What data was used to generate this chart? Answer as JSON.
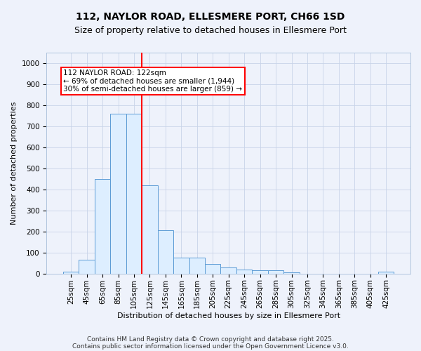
{
  "title_line1": "112, NAYLOR ROAD, ELLESMERE PORT, CH66 1SD",
  "title_line2": "Size of property relative to detached houses in Ellesmere Port",
  "xlabel": "Distribution of detached houses by size in Ellesmere Port",
  "ylabel": "Number of detached properties",
  "bin_labels": [
    "25sqm",
    "45sqm",
    "65sqm",
    "85sqm",
    "105sqm",
    "125sqm",
    "145sqm",
    "165sqm",
    "185sqm",
    "205sqm",
    "225sqm",
    "245sqm",
    "265sqm",
    "285sqm",
    "305sqm",
    "325sqm",
    "345sqm",
    "365sqm",
    "385sqm",
    "405sqm",
    "425sqm"
  ],
  "bar_heights": [
    10,
    65,
    450,
    760,
    760,
    420,
    205,
    75,
    75,
    45,
    30,
    20,
    15,
    15,
    5,
    0,
    0,
    0,
    0,
    0,
    10
  ],
  "bar_color": "#ddeeff",
  "bar_edge_color": "#5b9bd5",
  "background_color": "#eef2fb",
  "grid_color": "#c8d4e8",
  "vline_color": "red",
  "annotation_text": "112 NAYLOR ROAD: 122sqm\n← 69% of detached houses are smaller (1,944)\n30% of semi-detached houses are larger (859) →",
  "annotation_box_color": "white",
  "annotation_box_edge": "red",
  "ylim": [
    0,
    1050
  ],
  "yticks": [
    0,
    100,
    200,
    300,
    400,
    500,
    600,
    700,
    800,
    900,
    1000
  ],
  "footnote1": "Contains HM Land Registry data © Crown copyright and database right 2025.",
  "footnote2": "Contains public sector information licensed under the Open Government Licence v3.0.",
  "title_fontsize": 10,
  "subtitle_fontsize": 9,
  "axis_label_fontsize": 8,
  "tick_fontsize": 7.5,
  "annotation_fontsize": 7.5,
  "footnote_fontsize": 6.5
}
